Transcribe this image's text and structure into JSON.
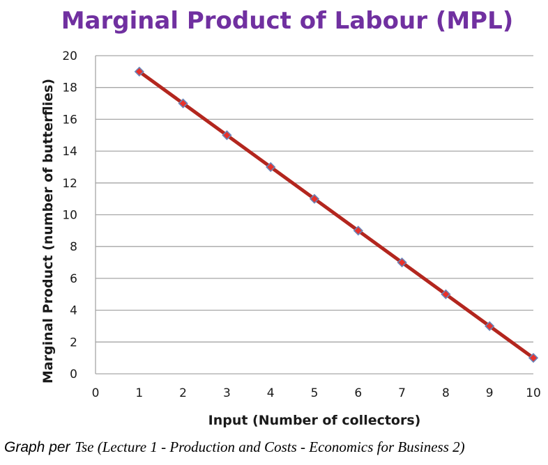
{
  "caption": {
    "prefix": "Graph per",
    "source": "Tse (Lecture 1 - Production and Costs - Economics for Business 2)"
  },
  "chart_data": {
    "type": "line",
    "title": "Marginal Product of Labour (MPL)",
    "xlabel": "Input (Number of collectors)",
    "ylabel": "Marginal Product (number of butterflies)",
    "xlim": [
      0,
      10
    ],
    "ylim": [
      0,
      20
    ],
    "x_ticks": [
      0,
      1,
      2,
      3,
      4,
      5,
      6,
      7,
      8,
      9,
      10
    ],
    "y_ticks": [
      0,
      2,
      4,
      6,
      8,
      10,
      12,
      14,
      16,
      18,
      20
    ],
    "grid": "horizontal",
    "legend": "none",
    "colors": {
      "title": "#7030a0",
      "line": "#b3261e",
      "marker_fill": "#e8322b",
      "marker_edge": "#6a84b8",
      "grid": "#a6a6a6"
    },
    "series": [
      {
        "x": [
          1,
          2,
          3,
          4,
          5,
          6,
          7,
          8,
          9,
          10
        ],
        "values": [
          19,
          17,
          15,
          13,
          11,
          9,
          7,
          5,
          3,
          1
        ]
      }
    ]
  }
}
